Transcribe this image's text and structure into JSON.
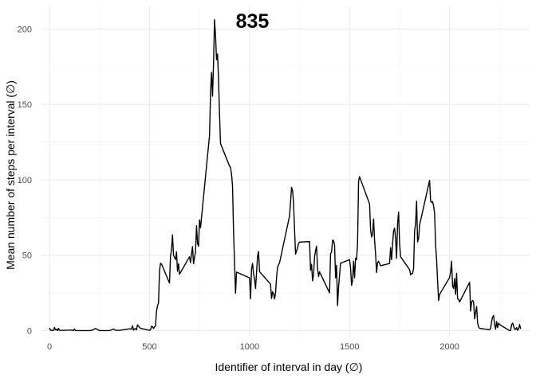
{
  "chart_data": {
    "type": "line",
    "xlabel": "Identifier of interval in day (∅)",
    "ylabel": "Mean number of steps per interval (∅)",
    "annotation": {
      "text": "835",
      "x": 835,
      "y": 206
    },
    "xlim": [
      -40,
      2400
    ],
    "ylim": [
      -4,
      215
    ],
    "x_ticks": [
      0,
      500,
      1000,
      1500,
      2000
    ],
    "y_ticks": [
      0,
      50,
      100,
      150,
      200
    ],
    "x_tick_labels": [
      "0",
      "500",
      "1000",
      "1500",
      "2000"
    ],
    "y_tick_labels": [
      "0",
      "50",
      "100",
      "150",
      "200"
    ],
    "grid": true,
    "line_color": "#000000",
    "grid_major_color": "#ebebeb",
    "grid_minor_color": "#f2f2f2",
    "series": [
      {
        "x": [
          0,
          5,
          10,
          15,
          20,
          25,
          30,
          35,
          40,
          45,
          50,
          55,
          100,
          110,
          120,
          125,
          130,
          200,
          210,
          230,
          250,
          300,
          320,
          330,
          350,
          400,
          410,
          415,
          420,
          425,
          430,
          435,
          440,
          445,
          455,
          500,
          505,
          510,
          515,
          520,
          530,
          535,
          540,
          545,
          550,
          555,
          560,
          600,
          605,
          610,
          615,
          620,
          630,
          635,
          640,
          645,
          650,
          700,
          705,
          710,
          715,
          720,
          730,
          735,
          740,
          745,
          750,
          755,
          800,
          805,
          810,
          815,
          820,
          825,
          830,
          835,
          840,
          845,
          850,
          855,
          900,
          905,
          910,
          915,
          920,
          925,
          930,
          935,
          1000,
          1005,
          1010,
          1015,
          1020,
          1025,
          1030,
          1040,
          1045,
          1050,
          1100,
          1105,
          1110,
          1115,
          1120,
          1125,
          1130,
          1135,
          1140,
          1150,
          1200,
          1205,
          1210,
          1215,
          1220,
          1225,
          1230,
          1240,
          1245,
          1250,
          1300,
          1305,
          1310,
          1315,
          1320,
          1325,
          1330,
          1335,
          1340,
          1345,
          1350,
          1400,
          1405,
          1410,
          1415,
          1420,
          1425,
          1430,
          1435,
          1440,
          1445,
          1455,
          1500,
          1505,
          1510,
          1515,
          1520,
          1525,
          1530,
          1535,
          1540,
          1545,
          1550,
          1600,
          1605,
          1610,
          1615,
          1620,
          1625,
          1630,
          1635,
          1640,
          1645,
          1655,
          1700,
          1705,
          1710,
          1715,
          1720,
          1725,
          1730,
          1735,
          1740,
          1745,
          1750,
          1755,
          1800,
          1805,
          1810,
          1815,
          1820,
          1825,
          1830,
          1835,
          1840,
          1845,
          1850,
          1900,
          1905,
          1910,
          1915,
          1920,
          1925,
          1930,
          1935,
          1940,
          1945,
          1950,
          2000,
          2005,
          2010,
          2015,
          2020,
          2025,
          2030,
          2035,
          2040,
          2045,
          2050,
          2100,
          2105,
          2110,
          2115,
          2120,
          2125,
          2130,
          2135,
          2140,
          2145,
          2150,
          2200,
          2205,
          2210,
          2215,
          2220,
          2225,
          2230,
          2235,
          2240,
          2245,
          2250,
          2300,
          2305,
          2310,
          2315,
          2320,
          2325,
          2330,
          2335,
          2340,
          2345,
          2350,
          2355
        ],
        "y": [
          1.7,
          0.3,
          0.1,
          0.2,
          0.1,
          2.1,
          0.5,
          0.9,
          0,
          1.5,
          0.3,
          0.1,
          0.3,
          0.4,
          0,
          1.1,
          0,
          0,
          0.1,
          1.4,
          0,
          0,
          1.1,
          0.2,
          0.2,
          1.2,
          0.9,
          3.3,
          0.3,
          1.1,
          1.3,
          0.5,
          3.8,
          2.9,
          1.5,
          0.2,
          0.5,
          2.9,
          2.6,
          1.4,
          3.4,
          12.7,
          16.5,
          18.3,
          39.5,
          44.6,
          44.2,
          31.5,
          49.3,
          53.8,
          63.5,
          50,
          47.1,
          52.2,
          39.3,
          44.4,
          37.4,
          49,
          45,
          51,
          55.7,
          44.3,
          52.3,
          69.5,
          57.8,
          56,
          73.4,
          68.2,
          129.4,
          157.5,
          171.2,
          155.4,
          177.3,
          206.2,
          195.9,
          179.6,
          183.4,
          167,
          143.5,
          124,
          109.1,
          108.1,
          103.7,
          95.96,
          66.2,
          45.2,
          24.8,
          38.8,
          34.98,
          21.06,
          40.68,
          44.66,
          37.7,
          34.1,
          28,
          49.1,
          52.5,
          39.1,
          31.6,
          30.7,
          21.3,
          25.7,
          24.6,
          21,
          25,
          35,
          42,
          45,
          76,
          85,
          95,
          93,
          85,
          67,
          50.7,
          55,
          57.8,
          58.7,
          59,
          40,
          44,
          33,
          37.1,
          49,
          53,
          56,
          41,
          36,
          39,
          25,
          51,
          52,
          60,
          59.6,
          56.6,
          35,
          43.3,
          16.6,
          28.9,
          44.7,
          47,
          41.5,
          30,
          33,
          46,
          35,
          48,
          47,
          58,
          99,
          102.1,
          84,
          67,
          62,
          64,
          74,
          60,
          51,
          38.5,
          45,
          46,
          43,
          44.5,
          55,
          47,
          57.5,
          66,
          68,
          61,
          48,
          71,
          78.6,
          58,
          49,
          40.4,
          37,
          37.8,
          38,
          41,
          66,
          71,
          85.8,
          58.8,
          61,
          70,
          99.6,
          86,
          85,
          85.5,
          82.6,
          78,
          57,
          47,
          33,
          20,
          24,
          35.2,
          39,
          46,
          29.3,
          28,
          34.5,
          24,
          38,
          21,
          20.9,
          19,
          32,
          13,
          19,
          20,
          19,
          7.8,
          12,
          16,
          5,
          2.4,
          1.5,
          0.6,
          1.6,
          6,
          9,
          10,
          4,
          1,
          6,
          2,
          5,
          4,
          0,
          0,
          4,
          5,
          3,
          0.9,
          0.8,
          2,
          0.2,
          1.2,
          4,
          1.1
        ],
        "approximate": true
      }
    ]
  }
}
